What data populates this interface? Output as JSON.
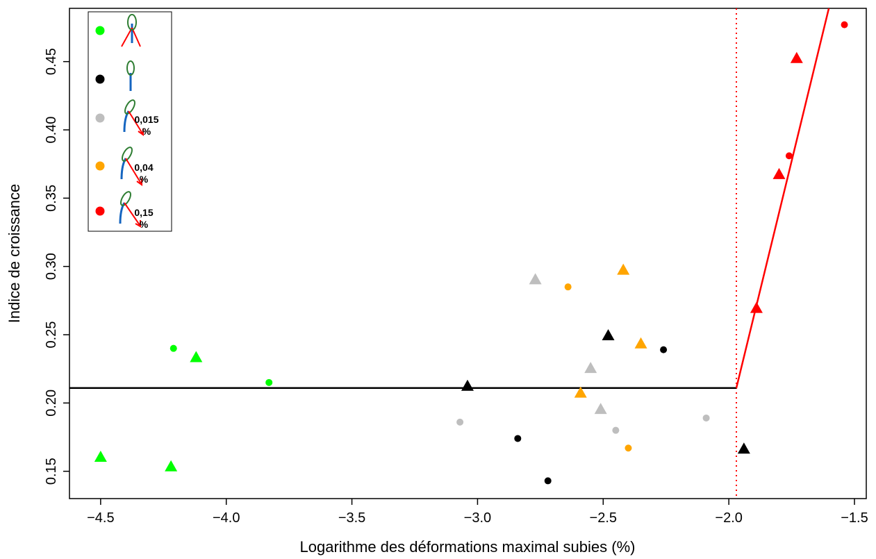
{
  "chart_data": {
    "type": "scatter",
    "x_label": "Logarithme des déformations maximal subies (%)",
    "y_label": "Indice de croissance",
    "xlim": [
      -4.624,
      -1.453
    ],
    "ylim": [
      0.13,
      0.489
    ],
    "xticks": [
      {
        "value": -4.5,
        "label": "−4.5"
      },
      {
        "value": -4.0,
        "label": "−4.0"
      },
      {
        "value": -3.5,
        "label": "−3.5"
      },
      {
        "value": -3.0,
        "label": "−3.0"
      },
      {
        "value": -2.5,
        "label": "−2.5"
      },
      {
        "value": -2.0,
        "label": "−2.0"
      },
      {
        "value": -1.5,
        "label": "−1.5"
      }
    ],
    "yticks": [
      0.15,
      {
        "value": 0.2,
        "label": "0.20"
      },
      0.25,
      {
        "value": 0.3,
        "label": "0.30"
      },
      0.35,
      {
        "value": 0.4,
        "label": "0.40"
      },
      0.45
    ],
    "series": [
      {
        "color": "#00ff00",
        "marker": "circle",
        "x": [
          -4.21,
          -3.83
        ],
        "values": [
          0.24,
          0.215
        ]
      },
      {
        "color": "#00ff00",
        "marker": "triangle",
        "x": [
          -4.5,
          -4.22,
          -4.12
        ],
        "values": [
          0.16,
          0.153,
          0.233
        ]
      },
      {
        "color": "#000000",
        "marker": "circle",
        "x": [
          -2.84,
          -2.72,
          -2.26
        ],
        "values": [
          0.174,
          0.143,
          0.239
        ]
      },
      {
        "color": "#000000",
        "marker": "triangle",
        "x": [
          -3.04,
          -2.48,
          -1.94
        ],
        "values": [
          0.212,
          0.249,
          0.166
        ]
      },
      {
        "color": "#bebebe",
        "marker": "circle",
        "x": [
          -3.07,
          -2.45,
          -2.09
        ],
        "values": [
          0.186,
          0.18,
          0.189
        ]
      },
      {
        "color": "#bebebe",
        "marker": "triangle",
        "x": [
          -2.77,
          -2.55,
          -2.51
        ],
        "values": [
          0.29,
          0.225,
          0.195
        ]
      },
      {
        "color": "#ffa500",
        "marker": "circle",
        "x": [
          -2.64,
          -2.4
        ],
        "values": [
          0.285,
          0.167
        ]
      },
      {
        "color": "#ffa500",
        "marker": "triangle",
        "x": [
          -2.42,
          -2.35,
          -2.59
        ],
        "values": [
          0.297,
          0.243,
          0.207
        ]
      },
      {
        "color": "#ff0000",
        "marker": "circle",
        "x": [
          -1.54,
          -1.76
        ],
        "values": [
          0.477,
          0.381
        ]
      },
      {
        "color": "#ff0000",
        "marker": "triangle",
        "x": [
          -1.73,
          -1.8,
          -1.89
        ],
        "values": [
          0.452,
          0.367,
          0.269
        ]
      }
    ],
    "lines": [
      {
        "color": "#000000",
        "x": [
          -4.624,
          -1.97
        ],
        "values": [
          0.211,
          0.211
        ]
      },
      {
        "color": "#ff0000",
        "x": [
          -1.97,
          -1.602
        ],
        "values": [
          0.211,
          0.489
        ]
      }
    ],
    "vline": {
      "color": "#ff0000",
      "x": -1.97
    },
    "legend": [
      {
        "color": "#00ff00"
      },
      {
        "color": "#000000"
      },
      {
        "color": "#bebebe",
        "label": "0,015 %"
      },
      {
        "color": "#ffa500",
        "label": "0,04 %"
      },
      {
        "color": "#ff0000",
        "label": "0,15 %"
      }
    ]
  }
}
